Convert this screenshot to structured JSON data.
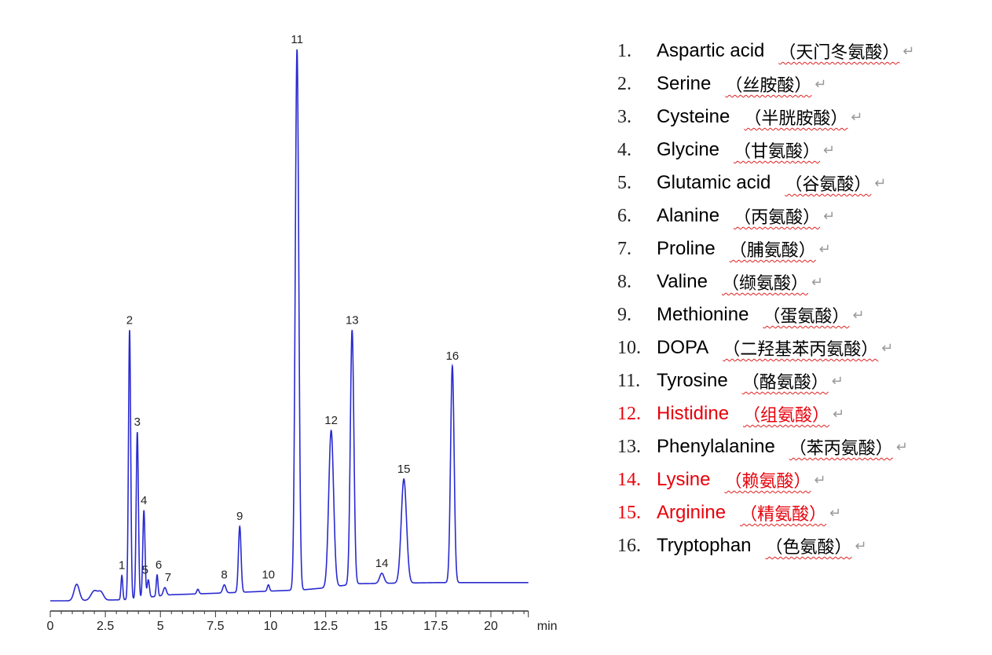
{
  "colors": {
    "trace": "#2a2ad0",
    "axis": "#333333",
    "highlight": "#e8000b",
    "text": "#000000"
  },
  "chart_data": {
    "type": "line",
    "title": "",
    "xlabel": "min",
    "ylabel": "",
    "xlim": [
      0,
      21.7
    ],
    "ylim": [
      0,
      105
    ],
    "x_ticks": [
      0,
      2.5,
      5,
      7.5,
      10,
      12.5,
      15,
      17.5,
      20
    ],
    "x_tick_labels": [
      "0",
      "2.5",
      "5",
      "7.5",
      "10",
      "12.5",
      "15",
      "17.5",
      "20"
    ],
    "grid": false,
    "y_units": "relative signal (tallest peak = 100)",
    "baseline": [
      [
        0,
        0
      ],
      [
        1.0,
        0
      ],
      [
        3.4,
        0.2
      ],
      [
        5.5,
        1.1
      ],
      [
        7.7,
        1.4
      ],
      [
        11.5,
        2.0
      ],
      [
        12.6,
        2.4
      ],
      [
        13.9,
        3.1
      ],
      [
        17.5,
        3.3
      ],
      [
        21.7,
        3.3
      ]
    ],
    "peaks": [
      {
        "label": "",
        "rt": 1.2,
        "signal": 3.0,
        "width": 0.12
      },
      {
        "label": "",
        "rt": 2.0,
        "signal": 1.8,
        "width": 0.15
      },
      {
        "label": "",
        "rt": 2.3,
        "signal": 1.5,
        "width": 0.12
      },
      {
        "label": "1",
        "rt": 3.25,
        "signal": 4.6,
        "width": 0.04
      },
      {
        "label": "2",
        "rt": 3.6,
        "signal": 49.1,
        "width": 0.05
      },
      {
        "label": "3",
        "rt": 3.95,
        "signal": 30.6,
        "width": 0.05
      },
      {
        "label": "4",
        "rt": 4.25,
        "signal": 16.4,
        "width": 0.05
      },
      {
        "label": "5",
        "rt": 4.45,
        "signal": 3.8,
        "width": 0.05
      },
      {
        "label": "6",
        "rt": 4.85,
        "signal": 4.7,
        "width": 0.04
      },
      {
        "label": "7",
        "rt": 5.2,
        "signal": 2.4,
        "width": 0.07
      },
      {
        "label": "",
        "rt": 6.7,
        "signal": 2.1,
        "width": 0.05
      },
      {
        "label": "8",
        "rt": 7.9,
        "signal": 2.9,
        "width": 0.07
      },
      {
        "label": "9",
        "rt": 8.6,
        "signal": 13.5,
        "width": 0.06
      },
      {
        "label": "10",
        "rt": 9.9,
        "signal": 2.9,
        "width": 0.05
      },
      {
        "label": "11",
        "rt": 11.2,
        "signal": 100,
        "width": 0.08
      },
      {
        "label": "12",
        "rt": 12.75,
        "signal": 30.9,
        "width": 0.11
      },
      {
        "label": "13",
        "rt": 13.7,
        "signal": 49.1,
        "width": 0.08
      },
      {
        "label": "14",
        "rt": 15.05,
        "signal": 5.0,
        "width": 0.1
      },
      {
        "label": "15",
        "rt": 16.05,
        "signal": 22.1,
        "width": 0.12
      },
      {
        "label": "16",
        "rt": 18.25,
        "signal": 42.6,
        "width": 0.08
      }
    ]
  },
  "legend": [
    {
      "num": "1.",
      "name": "Aspartic acid",
      "cn": "（天门冬氨酸）",
      "red": false
    },
    {
      "num": "2.",
      "name": "Serine",
      "cn": "（丝胺酸）",
      "red": false
    },
    {
      "num": "3.",
      "name": "Cysteine",
      "cn": "（半胱胺酸）",
      "red": false
    },
    {
      "num": "4.",
      "name": "Glycine",
      "cn": "（甘氨酸）",
      "red": false
    },
    {
      "num": "5.",
      "name": "Glutamic acid",
      "cn": "（谷氨酸）",
      "red": false
    },
    {
      "num": "6.",
      "name": "Alanine",
      "cn": "（丙氨酸）",
      "red": false
    },
    {
      "num": "7.",
      "name": "Proline",
      "cn": "（脯氨酸）",
      "red": false
    },
    {
      "num": "8.",
      "name": "Valine",
      "cn": "（缬氨酸）",
      "red": false
    },
    {
      "num": "9.",
      "name": "Methionine",
      "cn": "（蛋氨酸）",
      "red": false
    },
    {
      "num": "10.",
      "name": "DOPA",
      "cn": "（二羟基苯丙氨酸）",
      "red": false
    },
    {
      "num": "11.",
      "name": "Tyrosine",
      "cn": "（酪氨酸）",
      "red": false
    },
    {
      "num": "12.",
      "name": "Histidine",
      "cn": "（组氨酸）",
      "red": true
    },
    {
      "num": "13.",
      "name": "Phenylalanine",
      "cn": "（苯丙氨酸）",
      "red": false
    },
    {
      "num": "14.",
      "name": "Lysine",
      "cn": "（赖氨酸）",
      "red": true
    },
    {
      "num": "15.",
      "name": "Arginine",
      "cn": "（精氨酸）",
      "red": true
    },
    {
      "num": "16.",
      "name": "Tryptophan",
      "cn": "（色氨酸）",
      "red": false
    }
  ],
  "return_mark": "↵"
}
